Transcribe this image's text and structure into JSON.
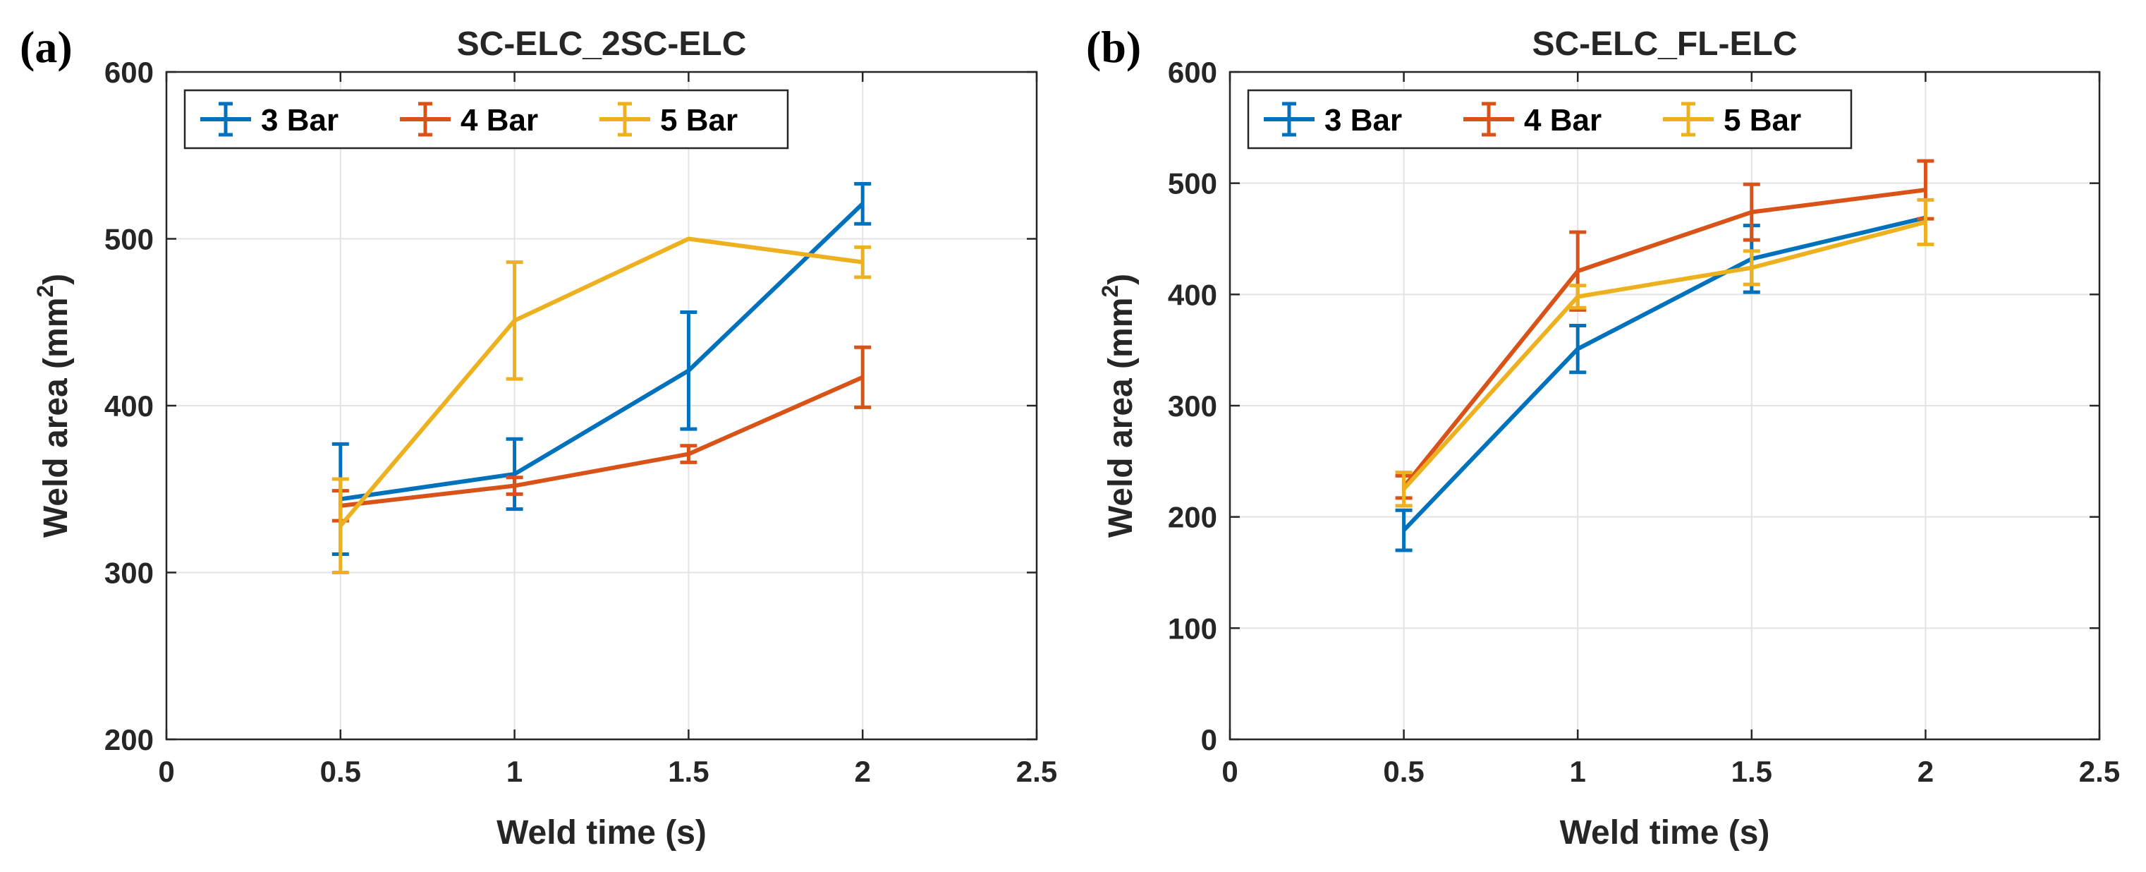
{
  "chart_data": [
    {
      "type": "line",
      "panel_label": "(a)",
      "title": "SC-ELC_2SC-ELC",
      "xlabel": "Weld time (s)",
      "ylabel": "Weld area (mm",
      "ylabel_sup": "2",
      "ylabel_close": ")",
      "xlim": [
        0,
        2.5
      ],
      "ylim": [
        200,
        600
      ],
      "xticks": [
        0,
        0.5,
        1,
        1.5,
        2,
        2.5
      ],
      "xtick_labels": [
        "0",
        "0.5",
        "1",
        "1.5",
        "2",
        "2.5"
      ],
      "yticks": [
        200,
        300,
        400,
        500,
        600
      ],
      "ytick_labels": [
        "200",
        "300",
        "400",
        "500",
        "600"
      ],
      "grid": true,
      "legend_placement": "top-left",
      "x": [
        0.5,
        1,
        1.5,
        2
      ],
      "series": [
        {
          "name": "3 Bar",
          "color": "#0072BD",
          "values": [
            344,
            359,
            421,
            521
          ],
          "err": [
            33,
            21,
            35,
            12
          ]
        },
        {
          "name": "4 Bar",
          "color": "#D95319",
          "values": [
            340,
            352,
            371,
            417
          ],
          "err": [
            9,
            5,
            5,
            18
          ]
        },
        {
          "name": "5 Bar",
          "color": "#EDB120",
          "values": [
            328,
            451,
            500,
            486
          ],
          "err": [
            28,
            35,
            0,
            9
          ]
        }
      ]
    },
    {
      "type": "line",
      "panel_label": "(b)",
      "title": "SC-ELC_FL-ELC",
      "xlabel": "Weld time (s)",
      "ylabel": "Weld area (mm",
      "ylabel_sup": "2",
      "ylabel_close": ")",
      "xlim": [
        0,
        2.5
      ],
      "ylim": [
        0,
        600
      ],
      "xticks": [
        0,
        0.5,
        1,
        1.5,
        2,
        2.5
      ],
      "xtick_labels": [
        "0",
        "0.5",
        "1",
        "1.5",
        "2",
        "2.5"
      ],
      "yticks": [
        0,
        100,
        200,
        300,
        400,
        500,
        600
      ],
      "ytick_labels": [
        "0",
        "100",
        "200",
        "300",
        "400",
        "500",
        "600"
      ],
      "grid": true,
      "legend_placement": "top-left",
      "x": [
        0.5,
        1,
        1.5,
        2
      ],
      "series": [
        {
          "name": "3 Bar",
          "color": "#0072BD",
          "values": [
            188,
            351,
            432,
            469
          ],
          "err": [
            18,
            21,
            30,
            0
          ]
        },
        {
          "name": "4 Bar",
          "color": "#D95319",
          "values": [
            227,
            421,
            474,
            494
          ],
          "err": [
            10,
            35,
            25,
            26
          ]
        },
        {
          "name": "5 Bar",
          "color": "#EDB120",
          "values": [
            225,
            398,
            424,
            465
          ],
          "err": [
            15,
            10,
            15,
            20
          ]
        }
      ]
    }
  ]
}
